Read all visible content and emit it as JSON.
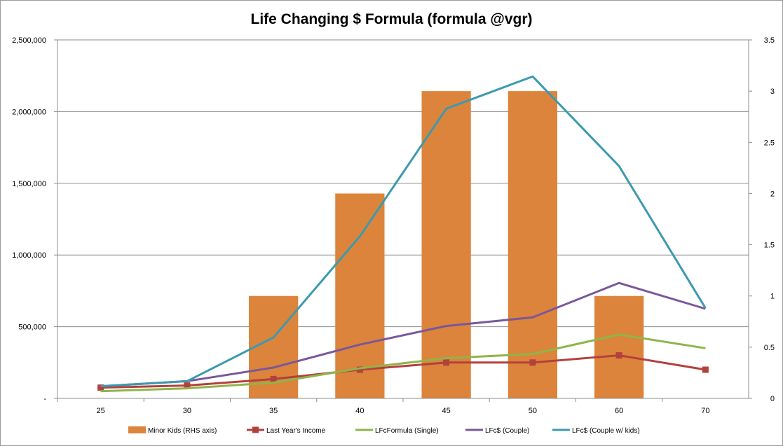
{
  "chart_data": {
    "type": "bar+line",
    "title": "Life Changing $ Formula (formula @vgr)",
    "categories": [
      "25",
      "30",
      "35",
      "40",
      "45",
      "50",
      "60",
      "70"
    ],
    "y_left": {
      "range": [
        0,
        2500000
      ],
      "ticks": [
        0,
        500000,
        1000000,
        1500000,
        2000000,
        2500000
      ],
      "tick_labels": [
        "-",
        "500,000",
        "1,000,000",
        "1,500,000",
        "2,000,000",
        "2,500,000"
      ]
    },
    "y_right": {
      "range": [
        0,
        3.5
      ],
      "ticks": [
        0,
        0.5,
        1,
        1.5,
        2,
        2.5,
        3,
        3.5
      ],
      "tick_labels": [
        "0",
        "0.5",
        "1",
        "1.5",
        "2",
        "2.5",
        "3",
        "3.5"
      ]
    },
    "grid": true,
    "legend_position": "bottom",
    "series": [
      {
        "name": "Minor Kids (RHS axis)",
        "kind": "bar",
        "axis": "right",
        "color": "#DC843B",
        "values": [
          0,
          0,
          1,
          2,
          3,
          3,
          1,
          0
        ]
      },
      {
        "name": "Last Year's Income",
        "kind": "line",
        "axis": "left",
        "color": "#B4403C",
        "marker": "square",
        "values": [
          75000,
          90000,
          135000,
          200000,
          250000,
          250000,
          300000,
          200000
        ]
      },
      {
        "name": "LFcFormula (Single)",
        "kind": "line",
        "axis": "left",
        "color": "#8FB44A",
        "marker": "none",
        "values": [
          50000,
          70000,
          110000,
          210000,
          280000,
          310000,
          445000,
          350000
        ]
      },
      {
        "name": "LFc$ (Couple)",
        "kind": "line",
        "axis": "left",
        "color": "#7A579A",
        "marker": "none",
        "values": [
          85000,
          120000,
          215000,
          375000,
          505000,
          565000,
          805000,
          625000
        ]
      },
      {
        "name": "LFc$ (Couple w/ kids)",
        "kind": "line",
        "axis": "left",
        "color": "#3C9AAF",
        "marker": "none",
        "values": [
          85000,
          120000,
          425000,
          1130000,
          2020000,
          2245000,
          1620000,
          630000
        ]
      }
    ]
  }
}
